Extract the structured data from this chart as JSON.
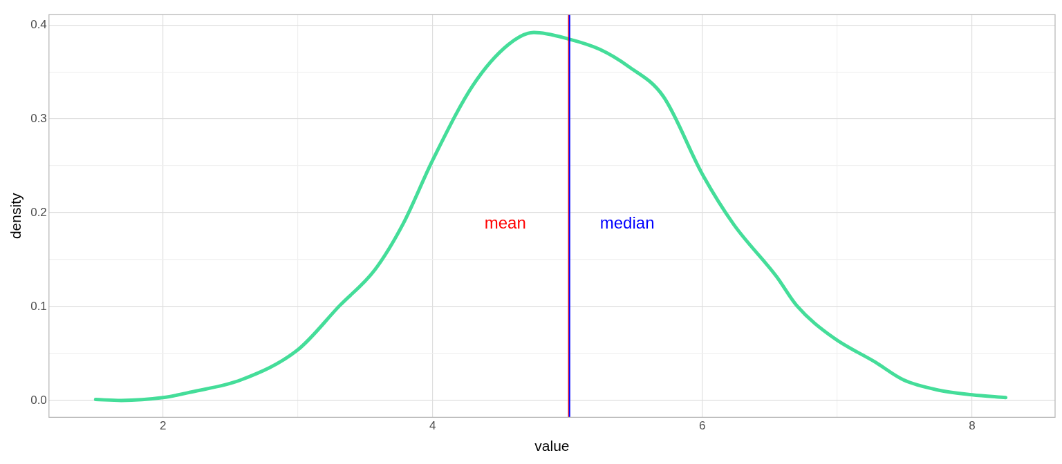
{
  "chart_data": {
    "type": "line",
    "xlabel": "value",
    "ylabel": "density",
    "xlim": [
      1.154,
      8.616
    ],
    "ylim": [
      -0.018,
      0.411
    ],
    "xticks": [
      2,
      {
        "value": 3,
        "label": null
      },
      4,
      {
        "value": 5,
        "label": null
      },
      6,
      {
        "value": 7,
        "label": null
      },
      8
    ],
    "yticks": [
      {
        "value": 0,
        "label": "0.0"
      },
      {
        "value": 0.05,
        "label": null
      },
      0.1,
      {
        "value": 0.15,
        "label": null
      },
      0.2,
      {
        "value": 0.25,
        "label": null
      },
      0.3,
      {
        "value": 0.35,
        "label": null
      },
      0.4
    ],
    "grid": true,
    "legend": false,
    "marker": "none",
    "line_style": "solid",
    "series": [
      {
        "color": "#44dd99",
        "x": [
          1.5,
          1.69,
          2.0,
          2.21,
          2.58,
          3.0,
          3.31,
          3.57,
          3.78,
          4.0,
          4.3,
          4.56,
          4.75,
          5.01,
          5.24,
          5.45,
          5.71,
          6.0,
          6.23,
          6.55,
          6.7,
          6.97,
          7.28,
          7.49,
          7.75,
          8.0,
          8.25
        ],
        "values": [
          0.001,
          0.0,
          0.003,
          0.009,
          0.022,
          0.054,
          0.101,
          0.139,
          0.188,
          0.256,
          0.336,
          0.379,
          0.392,
          0.385,
          0.374,
          0.356,
          0.324,
          0.241,
          0.188,
          0.132,
          0.101,
          0.067,
          0.041,
          0.022,
          0.011,
          0.006,
          0.003
        ]
      }
    ],
    "ref_lines": [
      {
        "axis": "x",
        "value": 5.01,
        "label": "mean",
        "color": "#ff0000"
      },
      {
        "axis": "x",
        "value": 5.015,
        "label": "median",
        "color": "#0000ff"
      }
    ]
  }
}
